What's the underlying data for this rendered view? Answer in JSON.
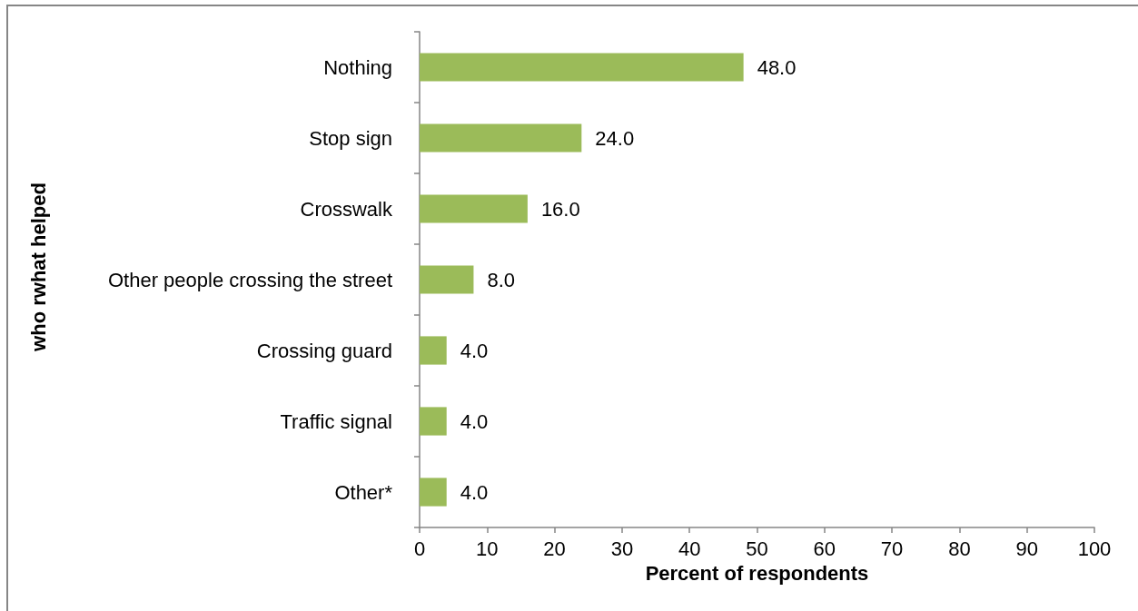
{
  "chart_data": {
    "type": "bar",
    "orientation": "horizontal",
    "categories": [
      "Nothing",
      "Stop sign",
      "Crosswalk",
      "Other people crossing the street",
      "Crossing guard",
      "Traffic signal",
      "Other*"
    ],
    "values": [
      48,
      24,
      16,
      8,
      4,
      4,
      4
    ],
    "value_labels": [
      "48.0",
      "24.0",
      "16.0",
      "8.0",
      "4.0",
      "4.0",
      "4.0"
    ],
    "color": "#9bbb59",
    "xlim": [
      0,
      100
    ],
    "xticks": [
      0,
      10,
      20,
      30,
      40,
      50,
      60,
      70,
      80,
      90,
      100
    ],
    "xlabel": "Percent of respondents",
    "ylabel": "who rwhat helped"
  }
}
